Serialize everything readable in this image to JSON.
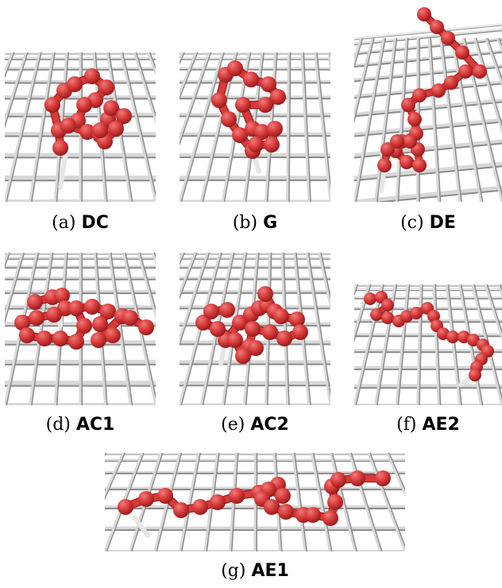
{
  "figure": {
    "panels": [
      {
        "id": "a",
        "letter": "(a)",
        "label": "DC"
      },
      {
        "id": "b",
        "letter": "(b)",
        "label": "G"
      },
      {
        "id": "c",
        "letter": "(c)",
        "label": "DE"
      },
      {
        "id": "d",
        "letter": "(d)",
        "label": "AC1"
      },
      {
        "id": "e",
        "letter": "(e)",
        "label": "AC2"
      },
      {
        "id": "f",
        "letter": "(f)",
        "label": "AE2"
      },
      {
        "id": "g",
        "letter": "(g)",
        "label": "AE1"
      }
    ],
    "colors": {
      "polymer": "#d63a3a",
      "polymer_highlight": "#f07a7a",
      "polymer_dark": "#9c1c1c",
      "grid": "#d8d8d8",
      "grid_shadow": "#8a8a8a",
      "tether": "#e6e6e6"
    }
  }
}
